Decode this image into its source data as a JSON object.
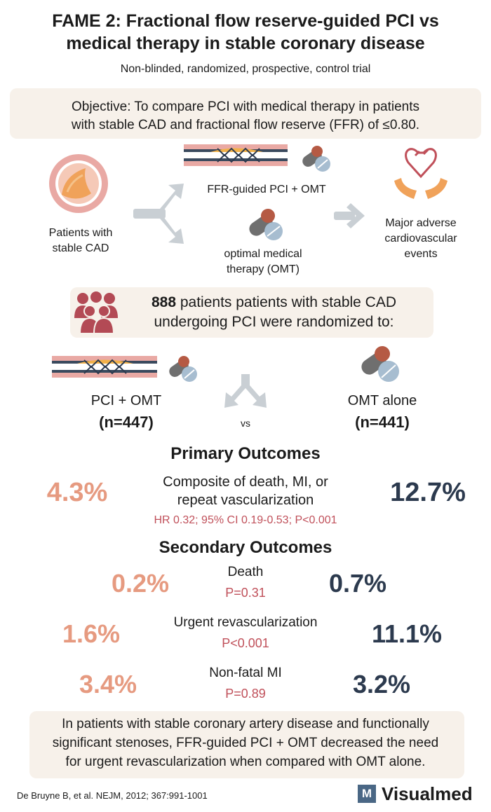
{
  "header": {
    "title_line1": "FAME 2: Fractional flow reserve-guided PCI vs",
    "title_line2": "medical therapy in stable coronary disease",
    "subtitle": "Non-blinded, randomized, prospective, control trial"
  },
  "objective": {
    "line1": "Objective: To compare PCI with medical therapy in patients",
    "line2": "with stable CAD and fractional flow reserve (FFR) of ≤0.80."
  },
  "design": {
    "patients_line1": "Patients with",
    "patients_line2": "stable CAD",
    "arm1": "FFR-guided PCI + OMT",
    "arm2_line1": "optimal medical",
    "arm2_line2": "therapy (OMT)",
    "outcome_line1": "Major adverse",
    "outcome_line2": "cardiovascular",
    "outcome_line3": "events"
  },
  "randomization": {
    "count": "888",
    "line1_rest": " patients patients with stable CAD",
    "line2": "undergoing PCI were randomized to:"
  },
  "arms": {
    "left_label": "PCI + OMT",
    "left_n": "(n=447)",
    "vs": "vs",
    "right_label": "OMT alone",
    "right_n": "(n=441)"
  },
  "primary": {
    "heading": "Primary Outcomes",
    "left": "4.3%",
    "right": "12.7%",
    "label_line1": "Composite of death, MI, or",
    "label_line2": "repeat vascularization",
    "stats": "HR 0.32; 95% CI 0.19-0.53; P<0.001"
  },
  "secondary": {
    "heading": "Secondary Outcomes",
    "rows": [
      {
        "left": "0.2%",
        "label": "Death",
        "p": "P=0.31",
        "right": "0.7%"
      },
      {
        "left": "1.6%",
        "label": "Urgent revascularization",
        "p": "P<0.001",
        "right": "11.1%"
      },
      {
        "left": "3.4%",
        "label": "Non-fatal MI",
        "p": "P=0.89",
        "right": "3.2%"
      }
    ]
  },
  "conclusion": {
    "line1": "In patients with stable coronary artery disease and functionally",
    "line2": "significant stenoses, FFR-guided PCI + OMT decreased the need",
    "line3": "for urgent revascularization when compared with OMT alone."
  },
  "footer": {
    "citation": "De Bruyne B, et al. NEJM, 2012; 367:991-1001",
    "brand_mark": "M",
    "brand_name": "Visualmed"
  },
  "colors": {
    "peach": "#e69a80",
    "navy": "#2c3a4e",
    "red": "#c0505a",
    "panel": "#f7f1ea",
    "arrow_gray": "#c9cfd4"
  },
  "icons": [
    "artery-cross-section-icon",
    "stent-icon",
    "pill-icon",
    "heart-hands-icon",
    "people-group-icon",
    "split-arrow-icon",
    "right-arrow-icon",
    "merge-arrow-icon"
  ]
}
